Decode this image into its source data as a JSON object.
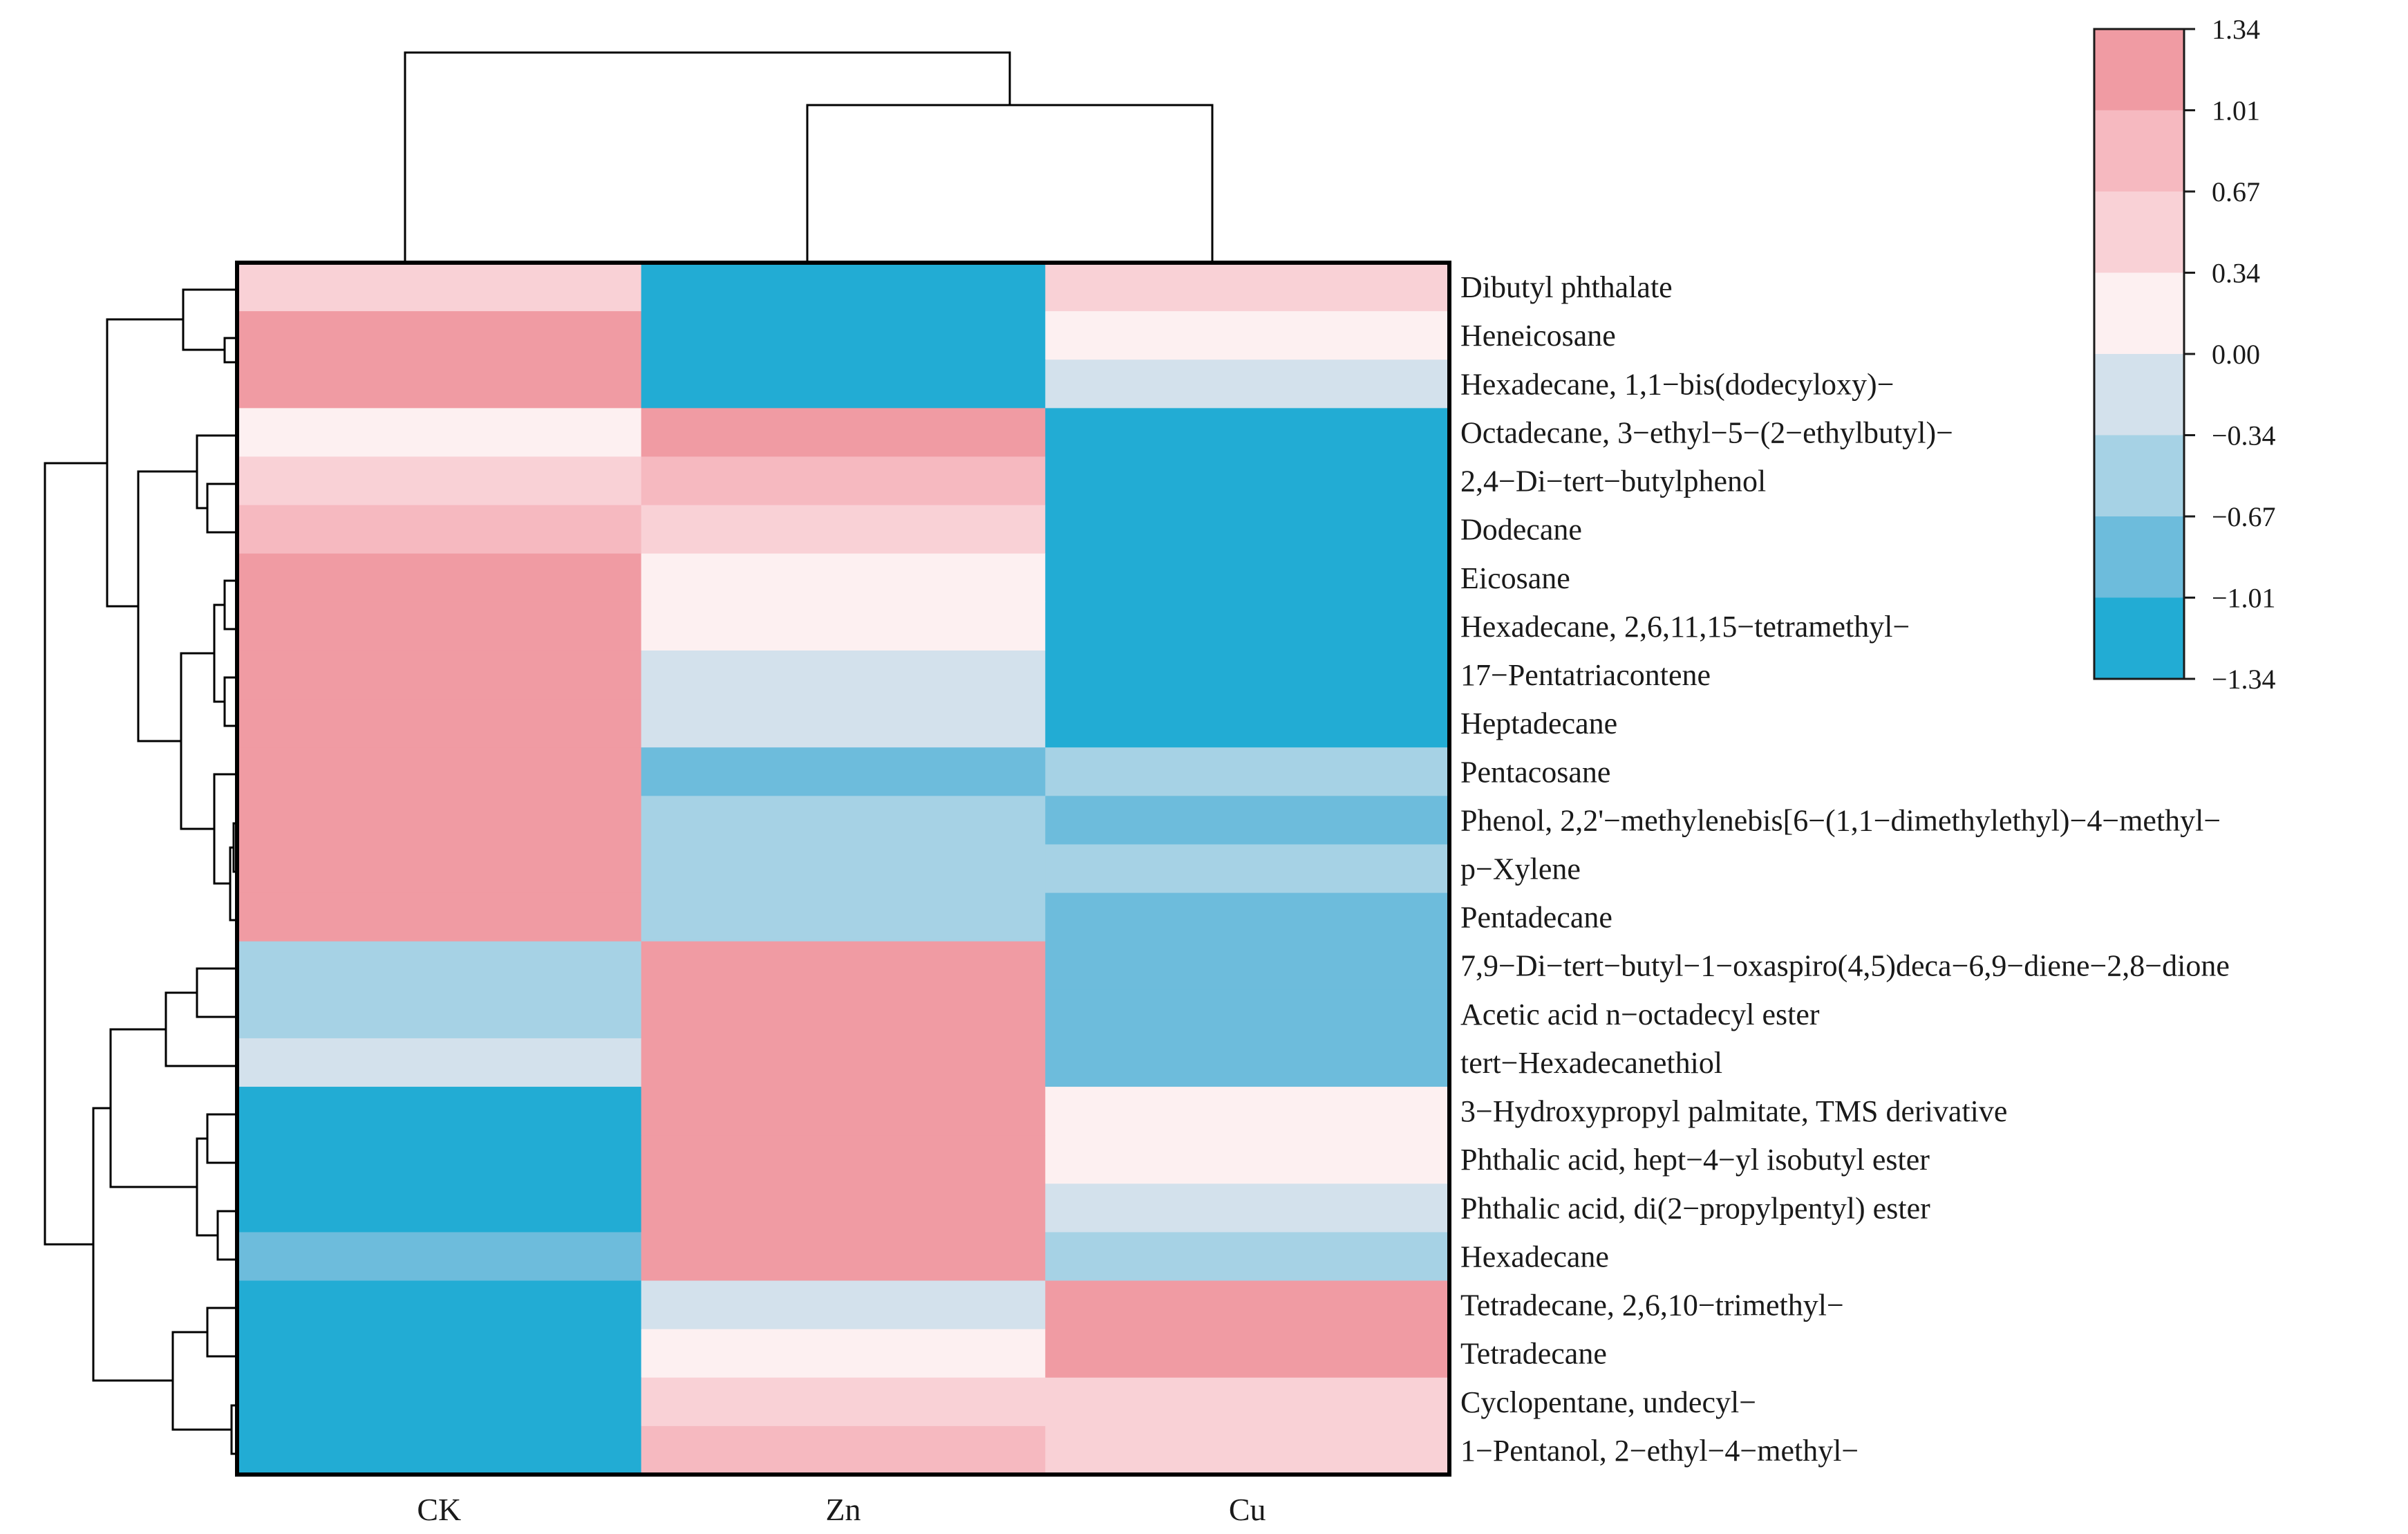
{
  "chart_data": {
    "type": "heatmap",
    "columns": [
      "CK",
      "Zn",
      "Cu"
    ],
    "rows": [
      "Dibutyl phthalate",
      "Heneicosane",
      "Hexadecane, 1,1−bis(dodecyloxy)−",
      "Octadecane, 3−ethyl−5−(2−ethylbutyl)−",
      "2,4−Di−tert−butylphenol",
      "Dodecane",
      "Eicosane",
      "Hexadecane, 2,6,11,15−tetramethyl−",
      "17−Pentatriacontene",
      "Heptadecane",
      "Pentacosane",
      "Phenol, 2,2'−methylenebis[6−(1,1−dimethylethyl)−4−methyl−",
      "p−Xylene",
      "Pentadecane",
      "7,9−Di−tert−butyl−1−oxaspiro(4,5)deca−6,9−diene−2,8−dione",
      "Acetic acid n−octadecyl ester",
      "tert−Hexadecanethiol",
      "3−Hydroxypropyl palmitate, TMS derivative",
      "Phthalic acid, hept−4−yl isobutyl ester",
      "Phthalic acid, di(2−propylpentyl) ester",
      "Hexadecane",
      "Tetradecane, 2,6,10−trimethyl−",
      "Tetradecane",
      "Cyclopentane, undecyl−",
      "1−Pentanol, 2−ethyl−4−methyl−"
    ],
    "values": [
      [
        0.5,
        -1.2,
        0.5
      ],
      [
        1.1,
        -1.2,
        0.17
      ],
      [
        1.1,
        -1.2,
        -0.17
      ],
      [
        0.17,
        1.17,
        -1.2
      ],
      [
        0.5,
        0.84,
        -1.2
      ],
      [
        0.84,
        0.5,
        -1.2
      ],
      [
        1.1,
        0.17,
        -1.2
      ],
      [
        1.1,
        0.17,
        -1.2
      ],
      [
        1.1,
        -0.17,
        -1.2
      ],
      [
        1.1,
        -0.17,
        -1.2
      ],
      [
        1.1,
        -0.84,
        -0.5
      ],
      [
        1.1,
        -0.5,
        -0.84
      ],
      [
        1.1,
        -0.5,
        -0.5
      ],
      [
        1.1,
        -0.5,
        -0.84
      ],
      [
        -0.5,
        1.1,
        -0.84
      ],
      [
        -0.5,
        1.1,
        -0.84
      ],
      [
        -0.17,
        1.1,
        -0.84
      ],
      [
        -1.2,
        1.1,
        0.17
      ],
      [
        -1.2,
        1.1,
        0.17
      ],
      [
        -1.2,
        1.1,
        -0.17
      ],
      [
        -0.84,
        1.1,
        -0.5
      ],
      [
        -1.2,
        -0.17,
        1.17
      ],
      [
        -1.2,
        0.17,
        1.17
      ],
      [
        -1.2,
        0.5,
        0.5
      ],
      [
        -1.2,
        0.84,
        0.5
      ]
    ],
    "color_scale": {
      "ticks": [
        "1.34",
        "1.01",
        "0.67",
        "0.34",
        "0.00",
        "−0.34",
        "−0.67",
        "−1.01",
        "−1.34"
      ],
      "bounds": [
        1.34,
        1.01,
        0.67,
        0.34,
        0.0,
        -0.34,
        -0.67,
        -1.01,
        -1.34
      ],
      "colors": [
        "#f09ba3",
        "#f6b9c0",
        "#f9d1d6",
        "#fdf0f1",
        "#d3e1ec",
        "#a6d2e5",
        "#6dbcdc",
        "#22acd4"
      ]
    },
    "column_dendrogram": "((Zn,Cu),CK)",
    "row_dendrogram_order": "rows listed top-to-bottom in clustered order"
  }
}
